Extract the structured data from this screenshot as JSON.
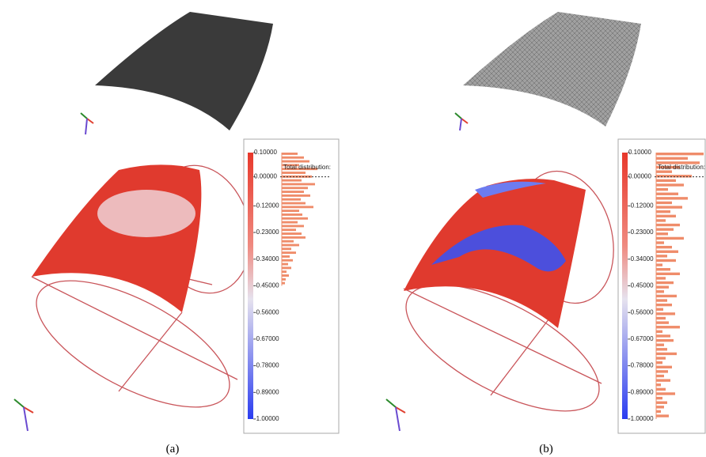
{
  "panels": [
    {
      "caption": "(a)",
      "colorbar": {
        "range": [
          0.1,
          -1.0
        ],
        "ticks": [
          {
            "value": 0.1,
            "label": "0.10000"
          },
          {
            "value": 0.0,
            "label": "0.00000"
          },
          {
            "value": -0.12,
            "label": "-0.12000"
          },
          {
            "value": -0.23,
            "label": "-0.23000"
          },
          {
            "value": -0.34,
            "label": "-0.34000"
          },
          {
            "value": -0.45,
            "label": "-0.45000"
          },
          {
            "value": -0.56,
            "label": "-0.56000"
          },
          {
            "value": -0.67,
            "label": "-0.67000"
          },
          {
            "value": -0.78,
            "label": "-0.78000"
          },
          {
            "value": -0.89,
            "label": "-0.89000"
          },
          {
            "value": -1.0,
            "label": "-1.00000"
          }
        ]
      },
      "histogram": {
        "title": "Total distribution:",
        "range": [
          0.1,
          -0.45
        ],
        "counts": [
          20,
          28,
          35,
          22,
          45,
          30,
          38,
          25,
          42,
          33,
          28,
          36,
          24,
          30,
          40,
          22,
          26,
          33,
          20,
          28,
          18,
          25,
          30,
          15,
          22,
          12,
          18,
          10,
          14,
          8,
          12,
          6,
          9,
          5,
          4
        ]
      }
    },
    {
      "caption": "(b)",
      "colorbar": {
        "range": [
          0.1,
          -1.0
        ],
        "ticks": [
          {
            "value": 0.1,
            "label": "0.10000"
          },
          {
            "value": 0.0,
            "label": "0.00000"
          },
          {
            "value": -0.12,
            "label": "-0.12000"
          },
          {
            "value": -0.23,
            "label": "-0.23000"
          },
          {
            "value": -0.34,
            "label": "-0.34000"
          },
          {
            "value": -0.45,
            "label": "-0.45000"
          },
          {
            "value": -0.56,
            "label": "-0.56000"
          },
          {
            "value": -0.67,
            "label": "-0.67000"
          },
          {
            "value": -0.78,
            "label": "-0.78000"
          },
          {
            "value": -0.89,
            "label": "-0.89000"
          },
          {
            "value": -1.0,
            "label": "-1.00000"
          }
        ]
      },
      "histogram": {
        "title": "Total distribution:",
        "range": [
          0.1,
          -1.0
        ],
        "counts": [
          60,
          40,
          55,
          30,
          20,
          45,
          25,
          35,
          15,
          28,
          40,
          20,
          33,
          18,
          25,
          12,
          30,
          22,
          15,
          35,
          10,
          20,
          28,
          14,
          25,
          8,
          18,
          30,
          12,
          22,
          16,
          10,
          26,
          14,
          20,
          9,
          24,
          12,
          16,
          30,
          8,
          18,
          22,
          10,
          14,
          26,
          12,
          8,
          20,
          15,
          10,
          18,
          6,
          12,
          24,
          8,
          14,
          10,
          6,
          16
        ]
      }
    }
  ]
}
